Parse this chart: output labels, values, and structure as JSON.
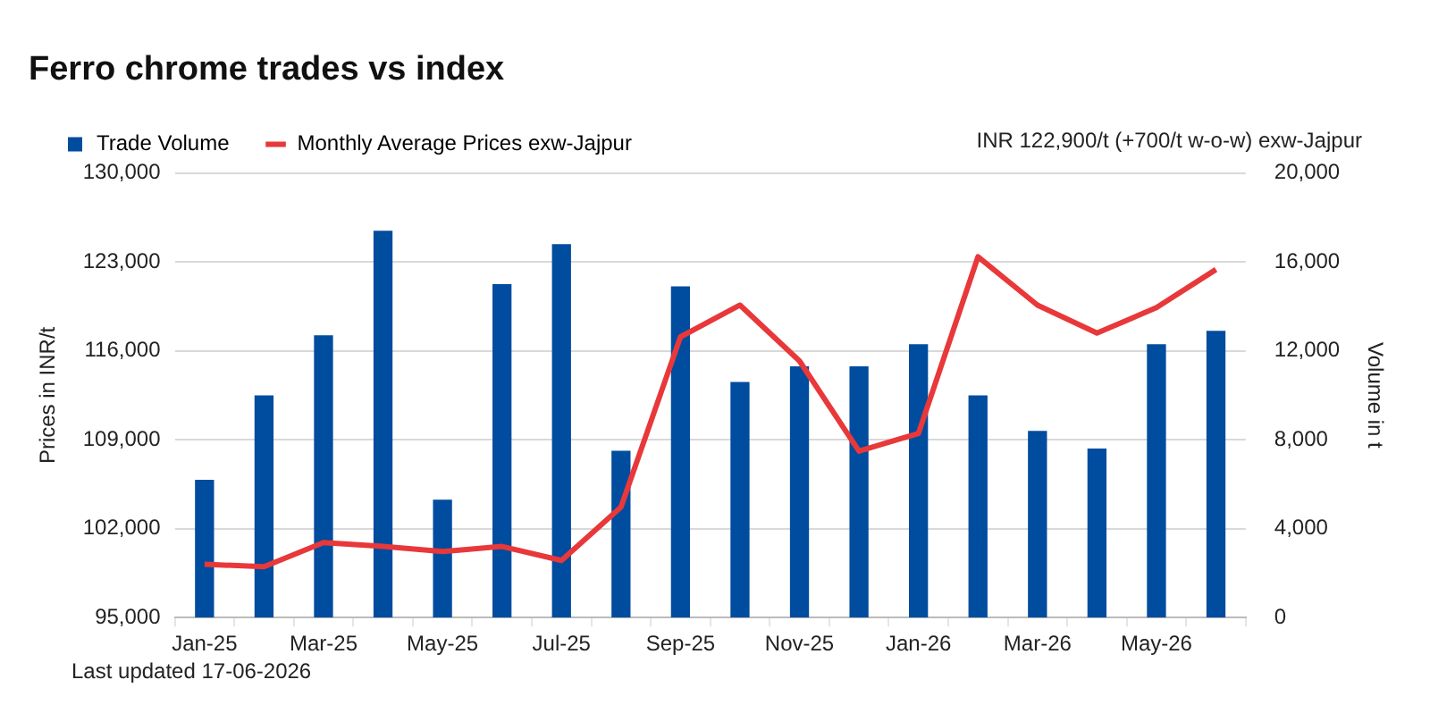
{
  "chart_data": {
    "type": "bar",
    "title": "Ferro chrome trades vs index",
    "categories": [
      "Jan-25",
      null,
      "Mar-25",
      null,
      "May-25",
      null,
      "Jul-25",
      null,
      "Sep-25",
      null,
      "Nov-25",
      null,
      "Jan-26",
      null,
      "Mar-26",
      null,
      "May-26",
      null
    ],
    "series": [
      {
        "name": "Trade Volume",
        "axis": "y2",
        "color": "#004c9e",
        "values": [
          6200,
          10000,
          12700,
          17400,
          5300,
          15000,
          16800,
          7500,
          14900,
          10600,
          11300,
          11300,
          12300,
          10000,
          8400,
          7600,
          12300,
          12900
        ]
      },
      {
        "name": "Monthly Average Prices exw-Jajpur",
        "type": "line",
        "color": "#e8383a",
        "values": [
          99200,
          99000,
          100900,
          100600,
          100200,
          100600,
          99500,
          103700,
          117100,
          119600,
          115200,
          108100,
          109500,
          123400,
          119600,
          117400,
          119400,
          122400
        ]
      }
    ],
    "ylabel": "Prices in INR/t",
    "y2label": "Volume in t",
    "ylim": [
      95000,
      130000
    ],
    "yticks": [
      {
        "value": 95000,
        "label": "95,000"
      },
      {
        "value": 102000,
        "label": "102,000"
      },
      {
        "value": 109000,
        "label": "109,000"
      },
      {
        "value": 116000,
        "label": "116,000"
      },
      {
        "value": 123000,
        "label": "123,000"
      },
      {
        "value": 130000,
        "label": "130,000"
      }
    ],
    "y2lim": [
      0,
      20000
    ],
    "y2ticks": [
      0,
      {
        "value": 4000,
        "label": "4,000"
      },
      {
        "value": 8000,
        "label": "8,000"
      },
      {
        "value": 12000,
        "label": "12,000"
      },
      {
        "value": 16000,
        "label": "16,000"
      },
      {
        "value": 20000,
        "label": "20,000"
      }
    ],
    "grid": "y",
    "legend": "top left",
    "marker": "none",
    "annotations": [
      "INR 122,900/t (+700/t w-o-w) exw-Jajpur",
      "Last updated 17-06-2026"
    ]
  }
}
